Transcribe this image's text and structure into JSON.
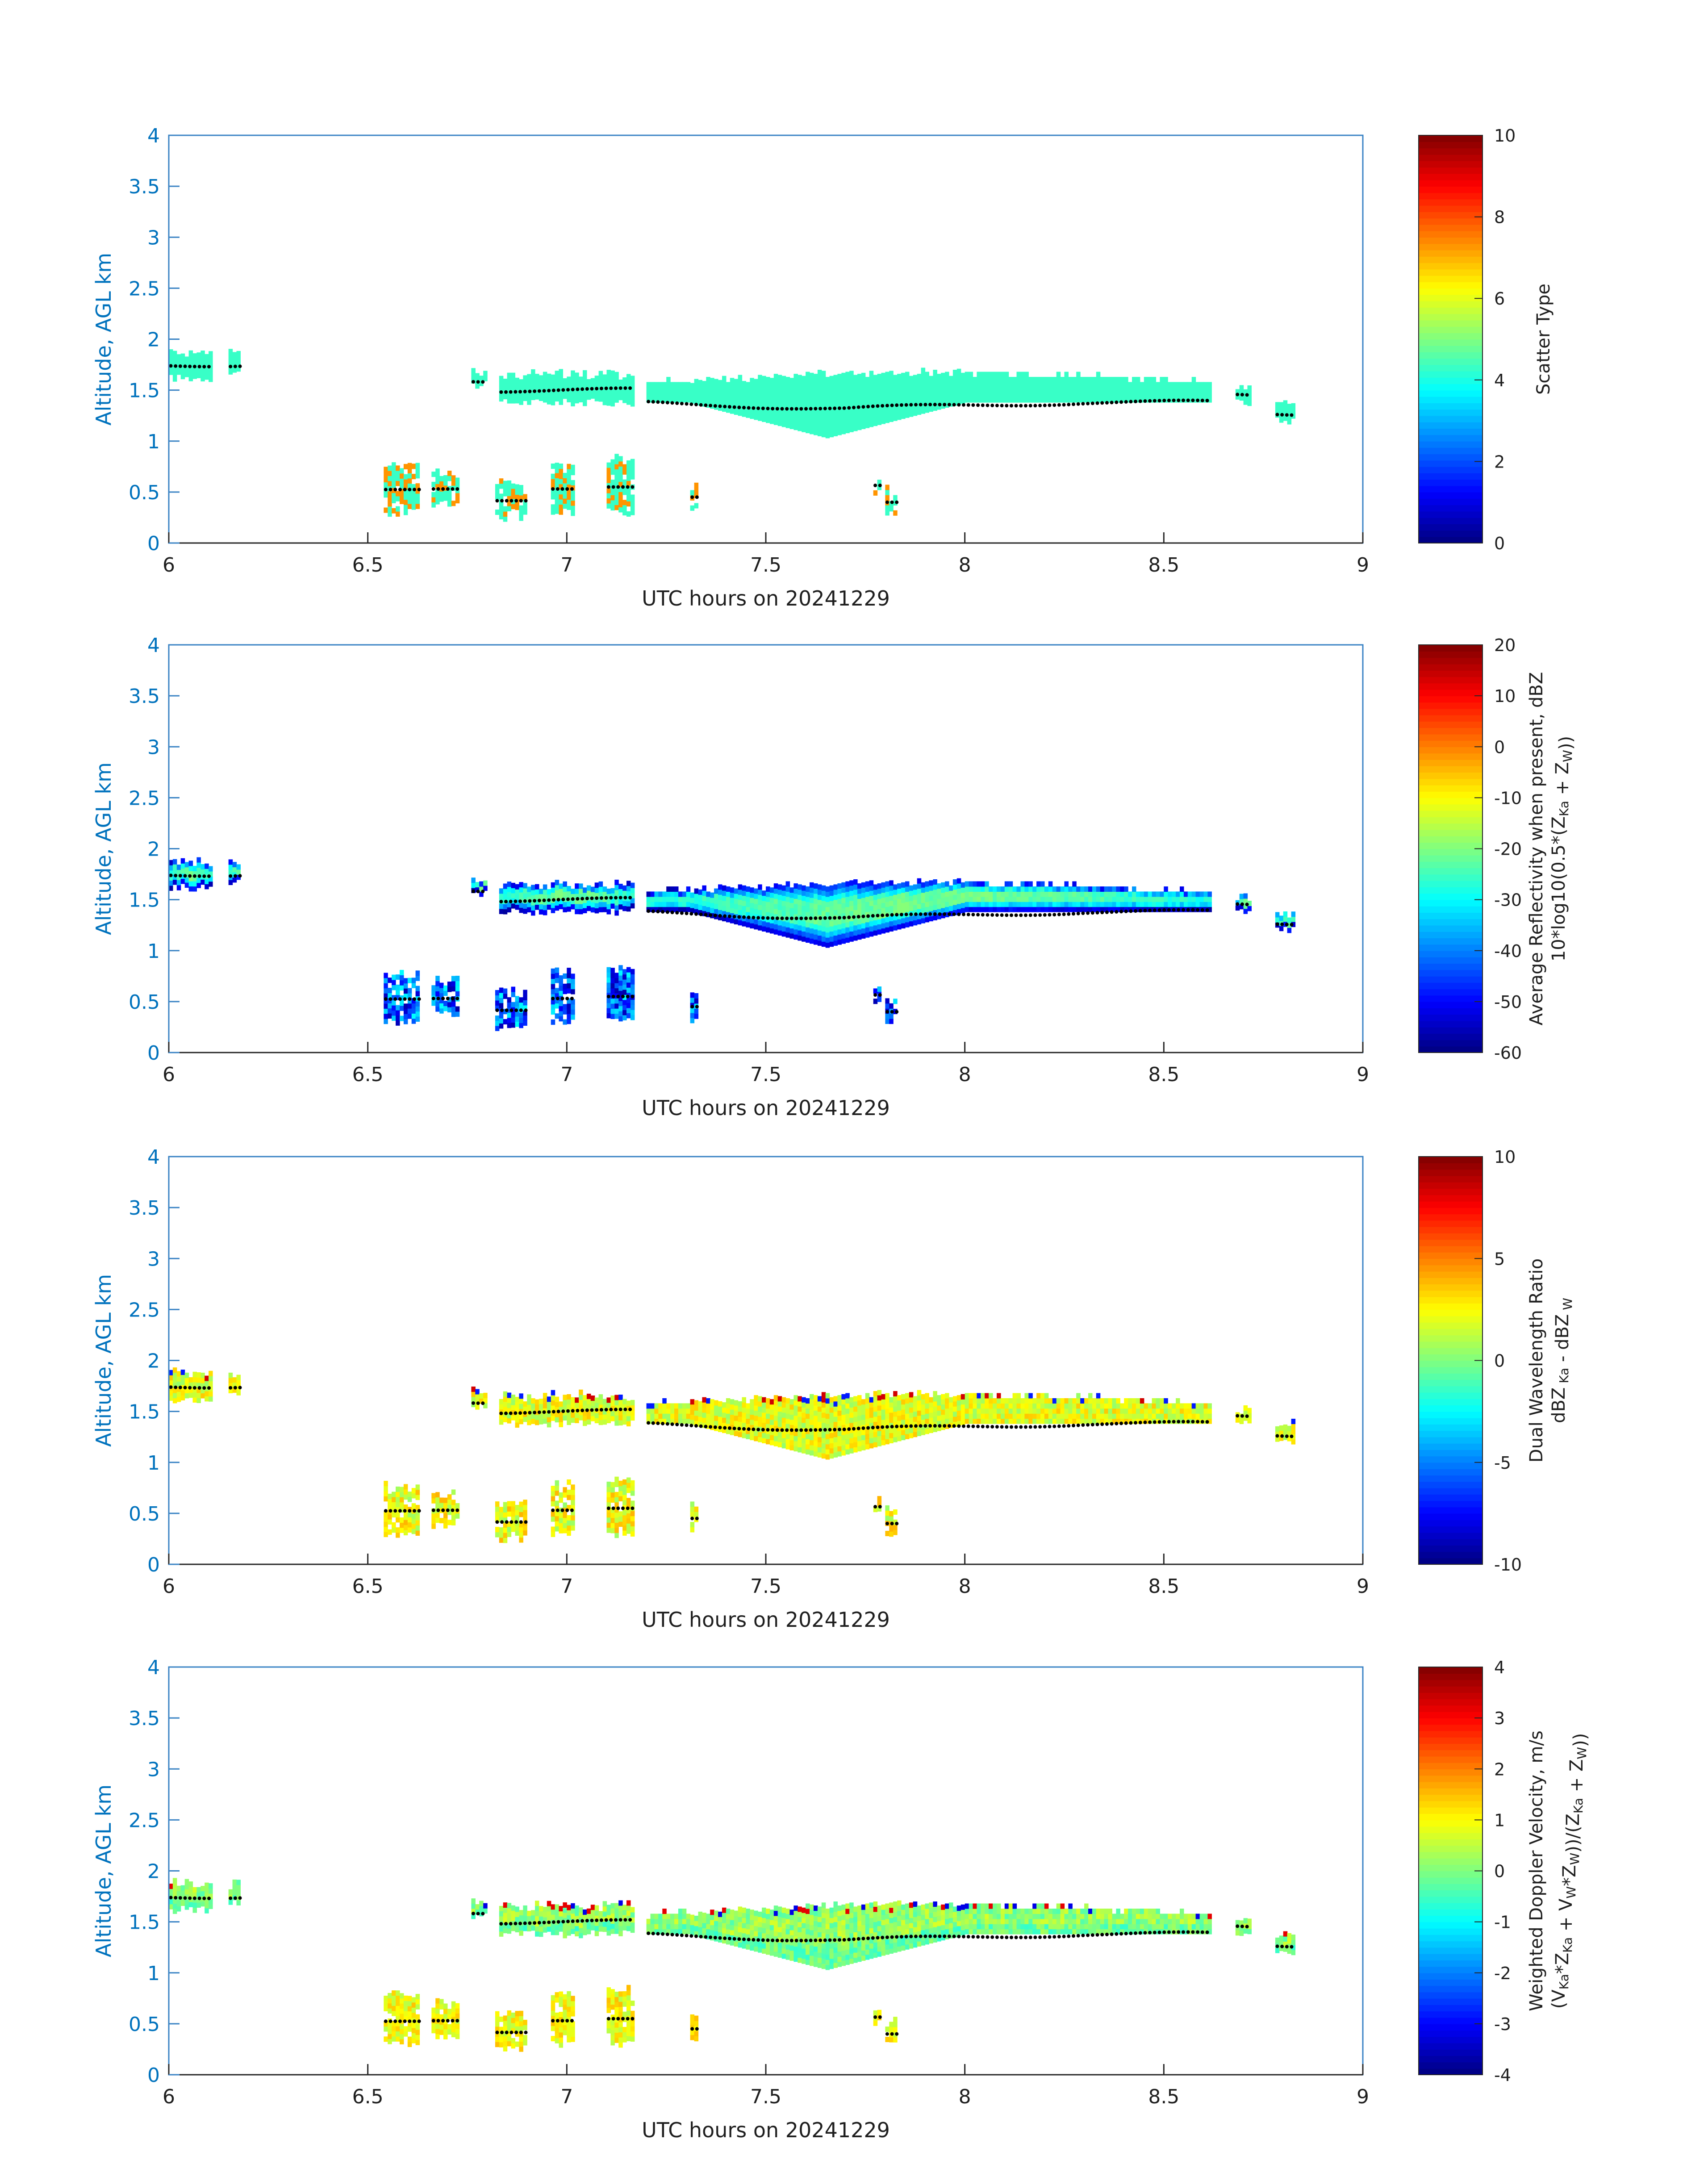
{
  "chart_data": [
    {
      "type": "heatmap",
      "title": "",
      "xlabel": "UTC hours on 20241229",
      "ylabel": "Altitude, AGL km",
      "xlim": [
        6,
        9
      ],
      "ylim": [
        0,
        4
      ],
      "xticks": [
        "6",
        "6.5",
        "7",
        "7.5",
        "8",
        "8.5",
        "9"
      ],
      "yticks": [
        "0",
        "0.5",
        "1",
        "1.5",
        "2",
        "2.5",
        "3",
        "3.5",
        "4"
      ],
      "colorbar": {
        "label": "Scatter Type",
        "label2": [],
        "lim": [
          0,
          10
        ],
        "ticks": [
          "0",
          "2",
          "4",
          "6",
          "8",
          "10"
        ],
        "colormap": "jet"
      },
      "field": "scatter",
      "cloud_top_dots_color": "#000000"
    },
    {
      "type": "heatmap",
      "title": "",
      "xlabel": "UTC hours on 20241229",
      "ylabel": "Altitude, AGL km",
      "xlim": [
        6,
        9
      ],
      "ylim": [
        0,
        4
      ],
      "xticks": [
        "6",
        "6.5",
        "7",
        "7.5",
        "8",
        "8.5",
        "9"
      ],
      "yticks": [
        "0",
        "0.5",
        "1",
        "1.5",
        "2",
        "2.5",
        "3",
        "3.5",
        "4"
      ],
      "colorbar": {
        "label": "Average Reflectivity when present, dBZ",
        "label2": [
          [
            "10*log10(0.5*(Z",
            ""
          ],
          [
            "Ka",
            "sub"
          ],
          [
            " + Z",
            ""
          ],
          [
            "W",
            "sub"
          ],
          [
            "))",
            ""
          ]
        ],
        "lim": [
          -60,
          20
        ],
        "ticks": [
          "-60",
          "-50",
          "-40",
          "-30",
          "-20",
          "-10",
          "0",
          "10",
          "20"
        ],
        "colormap": "jet"
      },
      "field": "reflectivity",
      "cloud_top_dots_color": "#000000"
    },
    {
      "type": "heatmap",
      "title": "",
      "xlabel": "UTC hours on 20241229",
      "ylabel": "Altitude, AGL km",
      "xlim": [
        6,
        9
      ],
      "ylim": [
        0,
        4
      ],
      "xticks": [
        "6",
        "6.5",
        "7",
        "7.5",
        "8",
        "8.5",
        "9"
      ],
      "yticks": [
        "0",
        "0.5",
        "1",
        "1.5",
        "2",
        "2.5",
        "3",
        "3.5",
        "4"
      ],
      "colorbar": {
        "label": "Dual Wavelength Ratio",
        "label2": [
          [
            "dBZ",
            ""
          ],
          [
            " Ka",
            "sub"
          ],
          [
            " - dBZ",
            ""
          ],
          [
            " W",
            "sub"
          ]
        ],
        "lim": [
          -10,
          10
        ],
        "ticks": [
          "-10",
          "-5",
          "0",
          "5",
          "10"
        ],
        "colormap": "jet"
      },
      "field": "dwr",
      "cloud_top_dots_color": "#000000"
    },
    {
      "type": "heatmap",
      "title": "",
      "xlabel": "UTC hours on 20241229",
      "ylabel": "Altitude, AGL km",
      "xlim": [
        6,
        9
      ],
      "ylim": [
        0,
        4
      ],
      "xticks": [
        "6",
        "6.5",
        "7",
        "7.5",
        "8",
        "8.5",
        "9"
      ],
      "yticks": [
        "0",
        "0.5",
        "1",
        "1.5",
        "2",
        "2.5",
        "3",
        "3.5",
        "4"
      ],
      "colorbar": {
        "label": "Weighted Doppler Velocity, m/s",
        "label2": [
          [
            "(V",
            ""
          ],
          [
            "Ka",
            "sub"
          ],
          [
            "*Z",
            ""
          ],
          [
            "Ka",
            "sub"
          ],
          [
            " + V",
            ""
          ],
          [
            "W",
            "sub"
          ],
          [
            "*Z",
            ""
          ],
          [
            "W",
            "sub"
          ],
          [
            "))/(Z",
            ""
          ],
          [
            "Ka",
            "sub"
          ],
          [
            " + Z",
            ""
          ],
          [
            "W",
            "sub"
          ],
          [
            "))",
            ""
          ]
        ],
        "lim": [
          -4,
          4
        ],
        "ticks": [
          "-4",
          "-3",
          "-2",
          "-1",
          "0",
          "1",
          "2",
          "3",
          "4"
        ],
        "colormap": "jet"
      },
      "field": "velocity",
      "cloud_top_dots_color": "#000000"
    }
  ],
  "cloud_segments": [
    {
      "t0": 6.0,
      "t1": 6.11,
      "top": 1.85,
      "base": 1.62,
      "dots": 1.75
    },
    {
      "t0": 6.15,
      "t1": 6.18,
      "top": 1.85,
      "base": 1.68,
      "dots": 1.75
    },
    {
      "t0": 6.76,
      "t1": 6.8,
      "top": 1.66,
      "base": 1.55,
      "dots": 1.6
    },
    {
      "t0": 6.83,
      "t1": 7.17,
      "top": 1.63,
      "base": 1.38,
      "dots": 1.5
    },
    {
      "t0": 7.2,
      "t1": 8.62,
      "top": 1.65,
      "base": 1.3,
      "dots": 1.38
    },
    {
      "t0": 8.68,
      "t1": 8.72,
      "top": 1.5,
      "base": 1.38,
      "dots": 1.45
    },
    {
      "t0": 8.78,
      "t1": 8.83,
      "top": 1.35,
      "base": 1.2,
      "dots": 1.27
    }
  ],
  "low_cells": [
    {
      "t0": 6.54,
      "t1": 6.63,
      "top": 0.75,
      "base": 0.3
    },
    {
      "t0": 6.66,
      "t1": 6.73,
      "top": 0.68,
      "base": 0.38
    },
    {
      "t0": 6.82,
      "t1": 6.9,
      "top": 0.58,
      "base": 0.25
    },
    {
      "t0": 6.96,
      "t1": 7.02,
      "top": 0.76,
      "base": 0.3
    },
    {
      "t0": 7.1,
      "t1": 7.17,
      "top": 0.8,
      "base": 0.3
    },
    {
      "t0": 7.31,
      "t1": 7.33,
      "top": 0.58,
      "base": 0.32
    },
    {
      "t0": 7.77,
      "t1": 7.79,
      "top": 0.63,
      "base": 0.5
    },
    {
      "t0": 7.8,
      "t1": 7.83,
      "top": 0.5,
      "base": 0.3
    }
  ]
}
